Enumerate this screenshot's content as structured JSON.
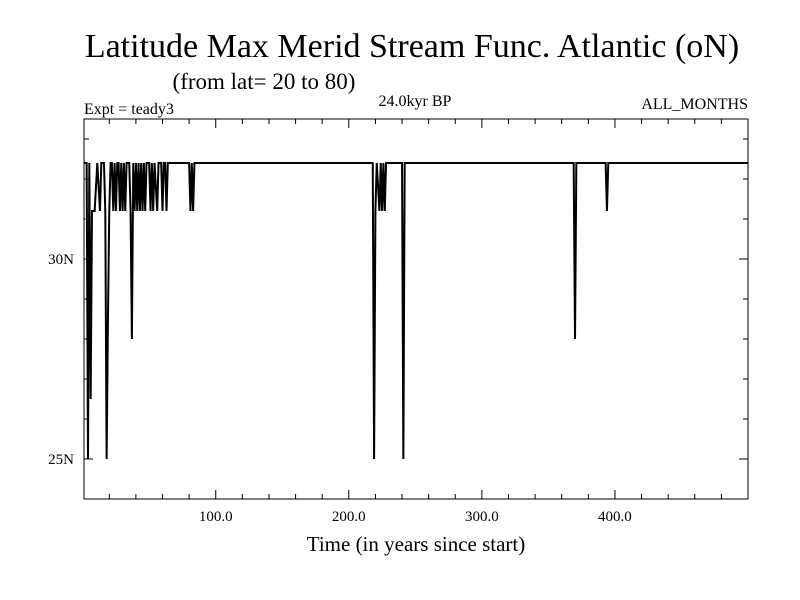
{
  "chart_data": {
    "type": "line",
    "title": "Latitude Max Merid Stream Func. Atlantic (oN)",
    "subtitle": "(from lat= 20 to 80)",
    "annotations": {
      "left": "Expt = teady3",
      "center": "24.0kyr BP",
      "right": "ALL_MONTHS"
    },
    "xlabel": "Time (in years since start)",
    "ylabel": "",
    "xlim": [
      1,
      500
    ],
    "ylim": [
      24,
      33.5
    ],
    "x_ticks": [
      100,
      200,
      300,
      400
    ],
    "x_tick_labels": [
      "100.0",
      "200.0",
      "300.0",
      "400.0"
    ],
    "y_ticks": [
      25,
      30
    ],
    "y_tick_labels": [
      "25N",
      "30N"
    ],
    "grid": false,
    "series": [
      {
        "color": "#000000",
        "points": [
          [
            1,
            32.4
          ],
          [
            3,
            32.4
          ],
          [
            4,
            25.0
          ],
          [
            5,
            32.4
          ],
          [
            6,
            26.5
          ],
          [
            7,
            31.2
          ],
          [
            9,
            31.2
          ],
          [
            11,
            32.4
          ],
          [
            13,
            31.2
          ],
          [
            14,
            32.4
          ],
          [
            16,
            32.4
          ],
          [
            17,
            31.2
          ],
          [
            18,
            25.0
          ],
          [
            19,
            28.5
          ],
          [
            20,
            31.2
          ],
          [
            21,
            32.4
          ],
          [
            22,
            32.4
          ],
          [
            23,
            31.2
          ],
          [
            24,
            32.4
          ],
          [
            25,
            31.2
          ],
          [
            26,
            32.4
          ],
          [
            27,
            32.4
          ],
          [
            28,
            31.2
          ],
          [
            29,
            32.4
          ],
          [
            30,
            31.2
          ],
          [
            31,
            32.4
          ],
          [
            32,
            31.2
          ],
          [
            33,
            32.4
          ],
          [
            35,
            32.4
          ],
          [
            36,
            31.2
          ],
          [
            37,
            28.0
          ],
          [
            38,
            32.4
          ],
          [
            39,
            31.2
          ],
          [
            40,
            32.4
          ],
          [
            41,
            31.2
          ],
          [
            42,
            32.4
          ],
          [
            43,
            31.2
          ],
          [
            44,
            32.4
          ],
          [
            45,
            31.2
          ],
          [
            46,
            32.4
          ],
          [
            47,
            31.2
          ],
          [
            48,
            32.4
          ],
          [
            50,
            32.4
          ],
          [
            51,
            31.2
          ],
          [
            52,
            32.4
          ],
          [
            53,
            31.2
          ],
          [
            54,
            32.4
          ],
          [
            56,
            31.2
          ],
          [
            57,
            32.4
          ],
          [
            59,
            32.4
          ],
          [
            60,
            31.2
          ],
          [
            61,
            32.4
          ],
          [
            62,
            32.4
          ],
          [
            63,
            31.2
          ],
          [
            64,
            32.4
          ],
          [
            80,
            32.4
          ],
          [
            81,
            31.2
          ],
          [
            82,
            32.4
          ],
          [
            83,
            31.2
          ],
          [
            84,
            32.4
          ],
          [
            218,
            32.4
          ],
          [
            219,
            25.0
          ],
          [
            220,
            31.2
          ],
          [
            221,
            32.4
          ],
          [
            223,
            31.2
          ],
          [
            224,
            32.4
          ],
          [
            225,
            31.2
          ],
          [
            226,
            32.4
          ],
          [
            227,
            31.2
          ],
          [
            228,
            32.4
          ],
          [
            240,
            32.4
          ],
          [
            241,
            25.0
          ],
          [
            242,
            32.4
          ],
          [
            369,
            32.4
          ],
          [
            370,
            28.0
          ],
          [
            371,
            32.4
          ],
          [
            393,
            32.4
          ],
          [
            394,
            31.2
          ],
          [
            395,
            32.4
          ],
          [
            500,
            32.4
          ]
        ]
      }
    ]
  }
}
